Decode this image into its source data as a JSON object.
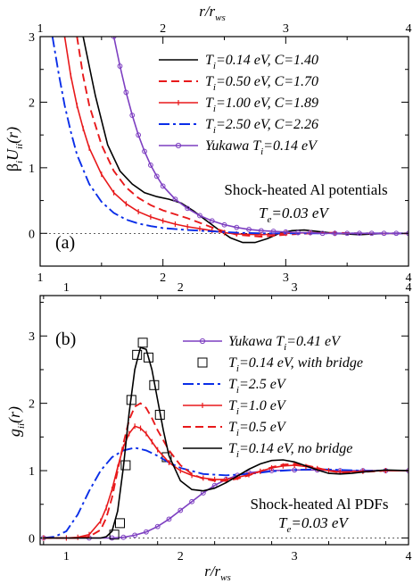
{
  "figure": {
    "top_axis_label": {
      "main": "r/r",
      "sub": "ws"
    },
    "bottom_axis_label": {
      "main": "r/r",
      "sub": "ws"
    }
  },
  "chart_data": [
    {
      "type": "line",
      "panel_label": "(a)",
      "ylabel": {
        "pre": "β",
        "pre_sub": "i",
        "main": "U",
        "main_sub": "ii",
        "tail": "(r)"
      },
      "xlabel_top": "r/r_ws",
      "xlim": [
        1,
        4
      ],
      "ylim": [
        -0.5,
        3
      ],
      "xticks": [
        1,
        2,
        3,
        4
      ],
      "yticks": [
        0,
        1,
        2,
        3
      ],
      "annotation": {
        "line1": "Shock-heated Al potentials",
        "line2_main": "T",
        "line2_sub": "e",
        "line2_rest": "=0.03 eV"
      },
      "series": [
        {
          "name": "T_i=0.14 eV, C=1.40",
          "legend": {
            "main": "T",
            "sub": "i",
            "rest": "=0.14 eV, C=1.40"
          },
          "color": "#000000",
          "style": "solid",
          "marker": "none",
          "x": [
            1.35,
            1.45,
            1.55,
            1.65,
            1.75,
            1.85,
            1.95,
            2.05,
            2.15,
            2.25,
            2.35,
            2.45,
            2.55,
            2.65,
            2.75,
            2.85,
            2.95,
            3.05,
            3.15,
            3.25,
            3.4,
            3.6,
            3.8,
            4.0
          ],
          "y": [
            3.0,
            2.1,
            1.35,
            0.95,
            0.75,
            0.62,
            0.56,
            0.52,
            0.46,
            0.34,
            0.2,
            0.06,
            -0.07,
            -0.14,
            -0.14,
            -0.08,
            0.0,
            0.04,
            0.05,
            0.03,
            0.0,
            -0.02,
            0.0,
            0.0
          ]
        },
        {
          "name": "T_i=0.50 eV, C=1.70",
          "legend": {
            "main": "T",
            "sub": "i",
            "rest": "=0.50 eV, C=1.70"
          },
          "color": "#e8191b",
          "style": "dashed",
          "marker": "none",
          "x": [
            1.3,
            1.35,
            1.4,
            1.5,
            1.6,
            1.7,
            1.8,
            1.9,
            2.0,
            2.1,
            2.2,
            2.3,
            2.4,
            2.5,
            2.6,
            2.8,
            3.0,
            3.2,
            3.4,
            3.6,
            4.0
          ],
          "y": [
            3.0,
            2.4,
            1.95,
            1.35,
            0.95,
            0.7,
            0.54,
            0.43,
            0.35,
            0.29,
            0.23,
            0.16,
            0.09,
            0.03,
            -0.02,
            -0.05,
            -0.02,
            0.0,
            0.01,
            0.0,
            0.0
          ]
        },
        {
          "name": "T_i=1.00 eV, C=1.89",
          "legend": {
            "main": "T",
            "sub": "i",
            "rest": "=1.00 eV, C=1.89"
          },
          "color": "#e8191b",
          "style": "solid",
          "marker": "tick",
          "x": [
            1.2,
            1.25,
            1.3,
            1.35,
            1.4,
            1.5,
            1.6,
            1.7,
            1.8,
            1.9,
            2.0,
            2.1,
            2.2,
            2.3,
            2.4,
            2.5,
            2.6,
            2.8,
            3.0,
            3.2,
            3.4,
            4.0
          ],
          "y": [
            3.0,
            2.4,
            1.95,
            1.6,
            1.3,
            0.9,
            0.62,
            0.45,
            0.33,
            0.25,
            0.19,
            0.14,
            0.1,
            0.07,
            0.04,
            0.01,
            -0.01,
            -0.02,
            0.0,
            0.01,
            0.0,
            0.0
          ]
        },
        {
          "name": "T_i=2.50 eV, C=2.26",
          "legend": {
            "main": "T",
            "sub": "i",
            "rest": "=2.50 eV, C=2.26"
          },
          "color": "#0a2ee8",
          "style": "dashdot",
          "marker": "none",
          "x": [
            1.1,
            1.15,
            1.2,
            1.25,
            1.3,
            1.4,
            1.5,
            1.6,
            1.7,
            1.8,
            1.9,
            2.0,
            2.2,
            2.4,
            2.6,
            2.8,
            3.0,
            4.0
          ],
          "y": [
            3.0,
            2.45,
            1.95,
            1.55,
            1.2,
            0.75,
            0.48,
            0.31,
            0.21,
            0.15,
            0.11,
            0.08,
            0.05,
            0.03,
            0.01,
            0.0,
            0.0,
            0.0
          ]
        },
        {
          "name": "Yukawa T_i=0.14 eV",
          "legend": {
            "main": "Yukawa T",
            "sub": "i",
            "rest": "=0.14 eV"
          },
          "color": "#7d3fc1",
          "style": "solid",
          "marker": "circle",
          "x": [
            1.6,
            1.65,
            1.7,
            1.75,
            1.8,
            1.85,
            1.9,
            1.95,
            2.0,
            2.1,
            2.2,
            2.3,
            2.4,
            2.5,
            2.6,
            2.7,
            2.8,
            2.9,
            3.0,
            3.1,
            3.2,
            3.3,
            3.4,
            3.5,
            3.6,
            3.7,
            3.8,
            3.9,
            4.0
          ],
          "y": [
            3.0,
            2.55,
            2.15,
            1.8,
            1.5,
            1.25,
            1.04,
            0.87,
            0.72,
            0.52,
            0.38,
            0.27,
            0.19,
            0.13,
            0.09,
            0.06,
            0.04,
            0.03,
            0.02,
            0.01,
            0.01,
            0.0,
            0.0,
            0.0,
            0.0,
            0.0,
            0.0,
            0.0,
            0.0
          ]
        }
      ]
    },
    {
      "type": "line",
      "panel_label": "(b)",
      "ylabel": {
        "main": "g",
        "main_sub": "ii",
        "tail": "(r)"
      },
      "xlabel": "r/r_ws",
      "xlim": [
        0.77,
        4
      ],
      "ylim": [
        -0.1,
        3.6
      ],
      "xticks": [
        1,
        2,
        3,
        4
      ],
      "yticks": [
        0,
        1,
        2,
        3
      ],
      "annotation": {
        "line1": "Shock-heated Al PDFs",
        "line2_main": "T",
        "line2_sub": "e",
        "line2_rest": "=0.03 eV"
      },
      "series": [
        {
          "name": "Yukawa T_i=0.41 eV",
          "legend": {
            "main": "Yukawa T",
            "sub": "i",
            "rest": "=0.41 eV"
          },
          "color": "#7d3fc1",
          "style": "solid",
          "marker": "circle",
          "x": [
            0.8,
            1.2,
            1.4,
            1.5,
            1.6,
            1.7,
            1.8,
            1.9,
            2.0,
            2.1,
            2.2,
            2.3,
            2.4,
            2.5,
            2.6,
            2.8,
            3.0,
            3.2,
            3.4,
            3.6,
            3.8,
            4.0
          ],
          "y": [
            0.0,
            0.0,
            0.0,
            0.01,
            0.04,
            0.09,
            0.17,
            0.28,
            0.41,
            0.54,
            0.67,
            0.78,
            0.87,
            0.93,
            0.97,
            1.0,
            1.01,
            1.01,
            1.0,
            1.0,
            1.0,
            1.0
          ]
        },
        {
          "name": "T_i=0.14 eV, with bridge",
          "legend": {
            "main": "T",
            "sub": "i",
            "rest": "=0.14 eV, with bridge"
          },
          "color": "#000000",
          "style": "none",
          "marker": "square",
          "x": [
            1.42,
            1.47,
            1.52,
            1.57,
            1.62,
            1.67,
            1.72,
            1.77,
            1.82,
            1.88
          ],
          "y": [
            0.05,
            0.22,
            1.08,
            2.05,
            2.72,
            2.9,
            2.68,
            2.27,
            1.83,
            1.2
          ]
        },
        {
          "name": "T_i=2.5 eV",
          "legend": {
            "main": "T",
            "sub": "i",
            "rest": "=2.5 eV"
          },
          "color": "#0a2ee8",
          "style": "dashdot",
          "marker": "none",
          "x": [
            0.8,
            0.9,
            1.0,
            1.1,
            1.2,
            1.3,
            1.4,
            1.5,
            1.6,
            1.7,
            1.8,
            1.9,
            2.0,
            2.2,
            2.4,
            2.6,
            2.8,
            3.0,
            3.2,
            3.4,
            3.6,
            4.0
          ],
          "y": [
            0.0,
            0.02,
            0.1,
            0.35,
            0.7,
            1.0,
            1.2,
            1.3,
            1.34,
            1.3,
            1.22,
            1.12,
            1.04,
            0.95,
            0.93,
            0.95,
            0.99,
            1.01,
            1.02,
            1.01,
            1.0,
            1.0
          ]
        },
        {
          "name": "T_i=1.0 eV",
          "legend": {
            "main": "T",
            "sub": "i",
            "rest": "=1.0 eV"
          },
          "color": "#e8191b",
          "style": "solid",
          "marker": "tick",
          "x": [
            0.8,
            1.0,
            1.1,
            1.2,
            1.3,
            1.35,
            1.4,
            1.45,
            1.5,
            1.55,
            1.6,
            1.65,
            1.7,
            1.75,
            1.8,
            1.9,
            2.0,
            2.1,
            2.2,
            2.3,
            2.4,
            2.5,
            2.6,
            2.7,
            2.8,
            2.9,
            3.0,
            3.1,
            3.2,
            3.3,
            3.4,
            3.6,
            3.8,
            4.0
          ],
          "y": [
            0.0,
            0.0,
            0.01,
            0.05,
            0.25,
            0.45,
            0.72,
            1.05,
            1.35,
            1.55,
            1.66,
            1.63,
            1.55,
            1.43,
            1.31,
            1.12,
            1.0,
            0.93,
            0.89,
            0.87,
            0.87,
            0.9,
            0.94,
            0.99,
            1.04,
            1.07,
            1.08,
            1.06,
            1.03,
            1.0,
            0.98,
            0.99,
            1.0,
            1.0
          ]
        },
        {
          "name": "T_i=0.5 eV",
          "legend": {
            "main": "T",
            "sub": "i",
            "rest": "=0.5 eV"
          },
          "color": "#e8191b",
          "style": "dashed",
          "marker": "none",
          "x": [
            0.8,
            1.1,
            1.2,
            1.3,
            1.35,
            1.4,
            1.45,
            1.5,
            1.55,
            1.6,
            1.65,
            1.7,
            1.75,
            1.8,
            1.9,
            2.0,
            2.1,
            2.2,
            2.3,
            2.4,
            2.5,
            2.6,
            2.7,
            2.8,
            2.9,
            3.0,
            3.1,
            3.2,
            3.3,
            3.4,
            3.6,
            3.8,
            4.0
          ],
          "y": [
            0.0,
            0.0,
            0.02,
            0.12,
            0.3,
            0.6,
            1.0,
            1.4,
            1.75,
            1.95,
            2.0,
            1.93,
            1.78,
            1.6,
            1.3,
            1.08,
            0.95,
            0.88,
            0.85,
            0.85,
            0.88,
            0.93,
            0.99,
            1.05,
            1.09,
            1.1,
            1.08,
            1.04,
            1.0,
            0.97,
            0.98,
            1.0,
            1.0
          ]
        },
        {
          "name": "T_i=0.14 eV, no bridge",
          "legend": {
            "main": "T",
            "sub": "i",
            "rest": "=0.14 eV,  no bridge"
          },
          "color": "#000000",
          "style": "solid",
          "marker": "none",
          "x": [
            0.8,
            1.3,
            1.35,
            1.4,
            1.45,
            1.5,
            1.55,
            1.6,
            1.65,
            1.7,
            1.75,
            1.8,
            1.85,
            1.9,
            2.0,
            2.1,
            2.2,
            2.3,
            2.4,
            2.5,
            2.6,
            2.7,
            2.8,
            2.9,
            3.0,
            3.1,
            3.2,
            3.3,
            3.4,
            3.5,
            3.6,
            3.8,
            4.0
          ],
          "y": [
            0.0,
            0.0,
            0.02,
            0.1,
            0.4,
            1.05,
            1.85,
            2.5,
            2.83,
            2.8,
            2.5,
            2.05,
            1.6,
            1.22,
            0.85,
            0.72,
            0.7,
            0.74,
            0.82,
            0.92,
            1.02,
            1.1,
            1.15,
            1.16,
            1.13,
            1.07,
            1.01,
            0.96,
            0.95,
            0.96,
            0.98,
            1.01,
            1.0
          ]
        }
      ]
    }
  ]
}
